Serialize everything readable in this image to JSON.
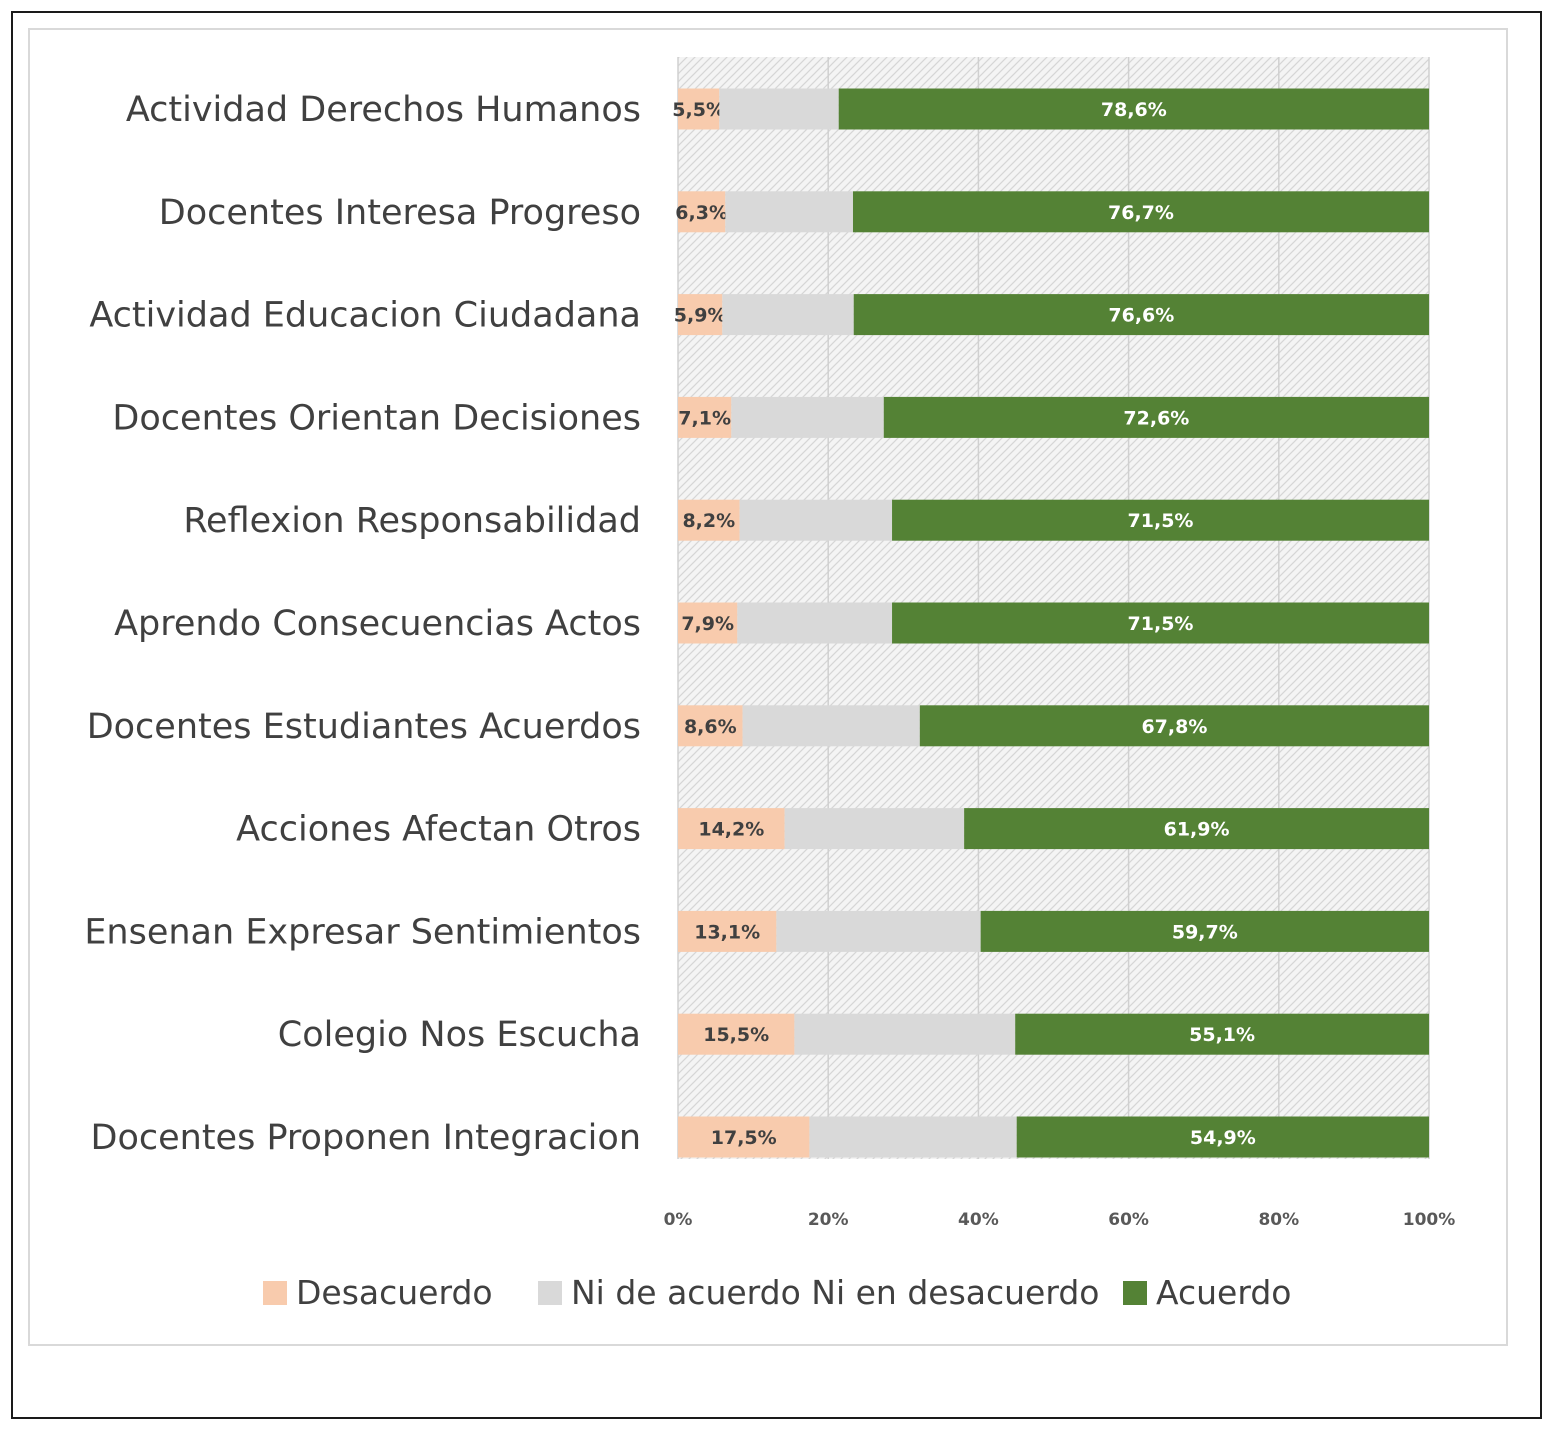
{
  "chart_data": {
    "type": "bar",
    "orientation": "horizontal",
    "stacked": "percent",
    "categories": [
      "Actividad Derechos Humanos",
      "Docentes Interesa Progreso",
      "Actividad Educacion Ciudadana",
      "Docentes Orientan Decisiones",
      "Reflexion Responsabilidad",
      "Aprendo Consecuencias Actos",
      "Docentes Estudiantes Acuerdos",
      "Acciones Afectan Otros",
      "Ensenan Expresar Sentimientos",
      "Colegio Nos Escucha",
      "Docentes Proponen Integracion"
    ],
    "series": [
      {
        "name": "Desacuerdo",
        "color": "#f8cbad",
        "label_color": "#404040",
        "values": [
          5.5,
          6.3,
          5.9,
          7.1,
          8.2,
          7.9,
          8.6,
          14.2,
          13.1,
          15.5,
          17.5
        ],
        "labels": [
          "5,5%",
          "6,3%",
          "5,9%",
          "7,1%",
          "8,2%",
          "7,9%",
          "8,6%",
          "14,2%",
          "13,1%",
          "15,5%",
          "17,5%"
        ]
      },
      {
        "name": "Ni de acuerdo Ni en desacuerdo",
        "color": "#d9d9d9",
        "values": [
          15.9,
          17.0,
          17.5,
          20.3,
          20.3,
          20.6,
          23.6,
          23.9,
          27.2,
          29.4,
          27.6
        ]
      },
      {
        "name": "Acuerdo",
        "color": "#548235",
        "label_color": "#ffffff",
        "values": [
          78.6,
          76.7,
          76.6,
          72.6,
          71.5,
          71.5,
          67.8,
          61.9,
          59.7,
          55.1,
          54.9
        ],
        "labels": [
          "78,6%",
          "76,7%",
          "76,6%",
          "72,6%",
          "71,5%",
          "71,5%",
          "67,8%",
          "61,9%",
          "59,7%",
          "55,1%",
          "54,9%"
        ]
      }
    ],
    "x_ticks": [
      "0%",
      "20%",
      "40%",
      "60%",
      "80%",
      "100%"
    ],
    "xlim": [
      0,
      100
    ],
    "grid": true,
    "legend": "bottom"
  }
}
